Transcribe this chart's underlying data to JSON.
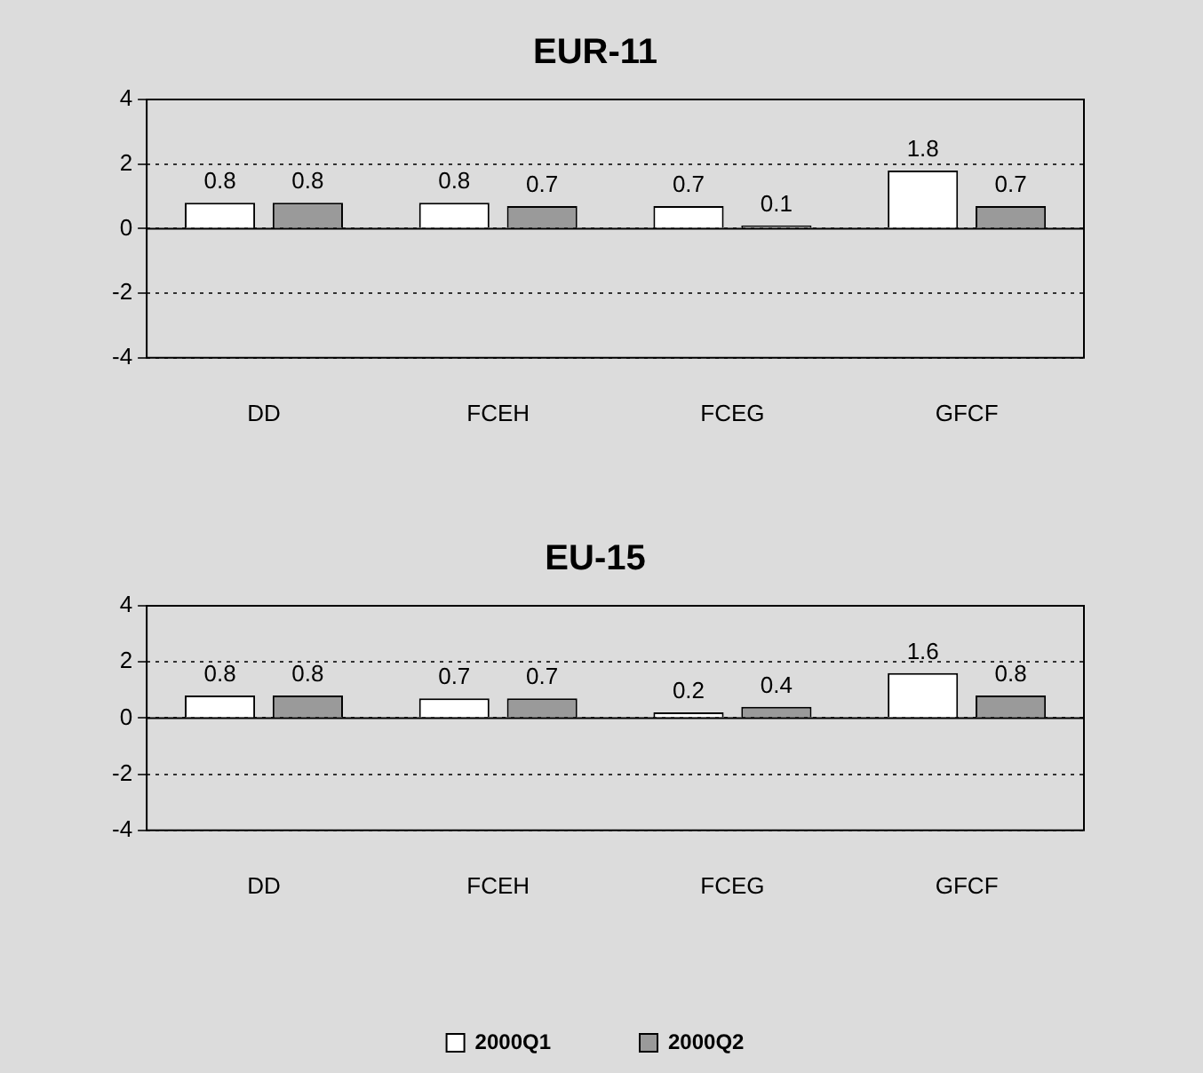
{
  "chart_data": [
    {
      "type": "bar",
      "title": "EUR-11",
      "categories": [
        "DD",
        "FCEH",
        "FCEG",
        "GFCF"
      ],
      "series": [
        {
          "color": "#ffffff",
          "values": [
            0.8,
            0.8,
            0.7,
            1.8
          ]
        },
        {
          "color": "#9a9a9a",
          "values": [
            0.8,
            0.7,
            0.1,
            0.7
          ]
        }
      ],
      "ylim": [
        -4,
        4
      ],
      "yticks": [
        -4,
        -2,
        0,
        2,
        4
      ],
      "grid": "y",
      "data_labels": true,
      "legend": false
    },
    {
      "type": "bar",
      "title": "EU-15",
      "categories": [
        "DD",
        "FCEH",
        "FCEG",
        "GFCF"
      ],
      "series": [
        {
          "name": "2000Q1",
          "color": "#ffffff",
          "values": [
            0.8,
            0.7,
            0.2,
            1.6
          ]
        },
        {
          "name": "2000Q2",
          "color": "#9a9a9a",
          "values": [
            0.8,
            0.7,
            0.4,
            0.8
          ]
        }
      ],
      "ylim": [
        -4,
        4
      ],
      "yticks": [
        -4,
        -2,
        0,
        2,
        4
      ],
      "grid": "y",
      "data_labels": true,
      "legend": "bottom"
    }
  ]
}
